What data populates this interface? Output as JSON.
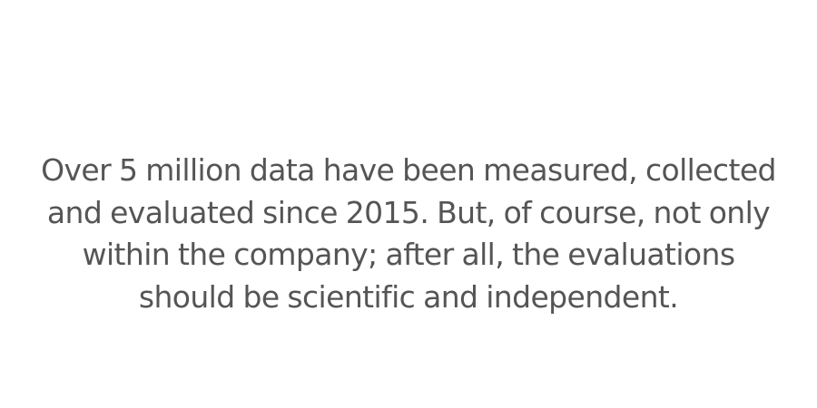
{
  "statement": {
    "lines": [
      "Over 5 million data have been measured, collected",
      "and evaluated since 2015. But, of course, not only",
      "within the company; after all, the evaluations",
      "should be scientific and independent."
    ]
  }
}
